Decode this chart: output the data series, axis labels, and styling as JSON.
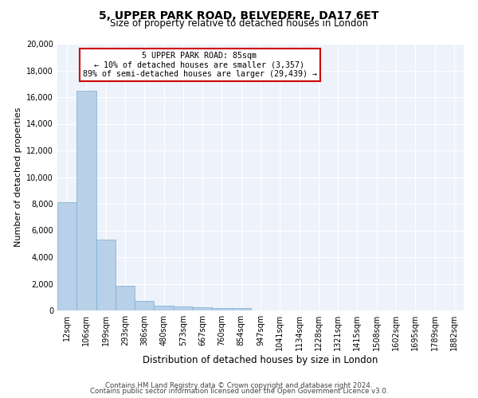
{
  "title1": "5, UPPER PARK ROAD, BELVEDERE, DA17 6ET",
  "title2": "Size of property relative to detached houses in London",
  "xlabel": "Distribution of detached houses by size in London",
  "ylabel": "Number of detached properties",
  "bar_color": "#b8d0e8",
  "bar_edge_color": "#7aafd4",
  "categories": [
    "12sqm",
    "106sqm",
    "199sqm",
    "293sqm",
    "386sqm",
    "480sqm",
    "573sqm",
    "667sqm",
    "760sqm",
    "854sqm",
    "947sqm",
    "1041sqm",
    "1134sqm",
    "1228sqm",
    "1321sqm",
    "1415sqm",
    "1508sqm",
    "1602sqm",
    "1695sqm",
    "1789sqm",
    "1882sqm"
  ],
  "values": [
    8100,
    16500,
    5300,
    1850,
    700,
    380,
    270,
    220,
    170,
    200,
    0,
    0,
    0,
    0,
    0,
    0,
    0,
    0,
    0,
    0,
    0
  ],
  "ylim": [
    0,
    20000
  ],
  "yticks": [
    0,
    2000,
    4000,
    6000,
    8000,
    10000,
    12000,
    14000,
    16000,
    18000,
    20000
  ],
  "annotation_title": "5 UPPER PARK ROAD: 85sqm",
  "annotation_line1": "← 10% of detached houses are smaller (3,357)",
  "annotation_line2": "89% of semi-detached houses are larger (29,439) →",
  "annotation_box_color": "#ffffff",
  "annotation_box_edge": "#cc0000",
  "footer1": "Contains HM Land Registry data © Crown copyright and database right 2024.",
  "footer2": "Contains public sector information licensed under the Open Government Licence v3.0.",
  "bg_color": "#eef2fb"
}
